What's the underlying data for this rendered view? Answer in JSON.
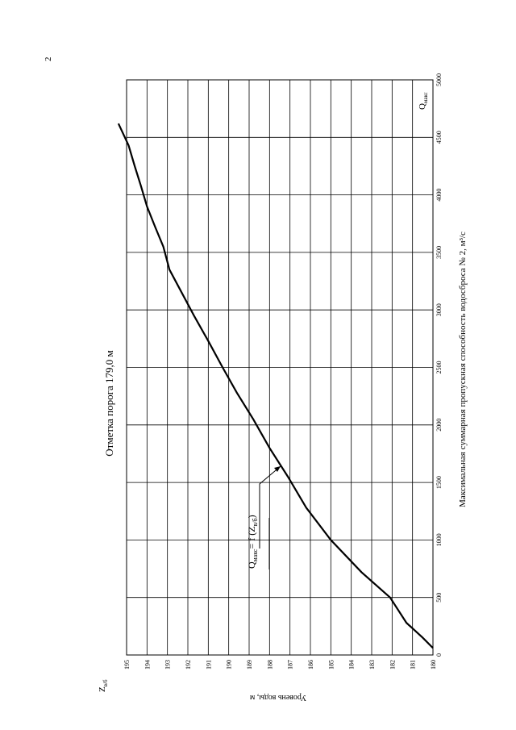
{
  "page": {
    "number": "2"
  },
  "chart_data": {
    "type": "line",
    "title": "Отметка порога 179,0 м",
    "xlabel": "Максимальная суммарная пропускная способность водосброса № 2, м³/с",
    "ylabel": "Уровень воды, м",
    "x_axis_name": {
      "main": "Q",
      "sub": "макс"
    },
    "y_axis_name": {
      "main": "Z",
      "sub": "в/б"
    },
    "curve_label": {
      "main": "Q",
      "sub": "макс",
      "eq": "= f (Z",
      "sub2": "в/б",
      "close": ")"
    },
    "xlim": [
      0,
      5000
    ],
    "ylim": [
      180,
      195
    ],
    "x_ticks": [
      0,
      500,
      1000,
      1500,
      2000,
      2500,
      3000,
      3500,
      4000,
      4500,
      5000
    ],
    "y_ticks": [
      180,
      181,
      182,
      183,
      184,
      185,
      186,
      187,
      188,
      189,
      190,
      191,
      192,
      193,
      194,
      195
    ],
    "grid": true,
    "orientation": "rotated 90° counter-clockwise",
    "series": [
      {
        "x": [
          60,
          150,
          280,
          500,
          720,
          1000,
          1280,
          1550,
          1800,
          2050,
          2280,
          2500,
          2730,
          2950,
          3150,
          3350,
          3550,
          3720,
          3900,
          4080,
          4250,
          4430,
          4620
        ],
        "y": [
          180,
          180.5,
          181.3,
          182.1,
          183.5,
          185.0,
          186.2,
          187.1,
          188.0,
          188.8,
          189.6,
          190.3,
          191.0,
          191.7,
          192.3,
          192.9,
          193.2,
          193.6,
          194.0,
          194.3,
          194.6,
          194.9,
          195.4
        ]
      }
    ]
  }
}
